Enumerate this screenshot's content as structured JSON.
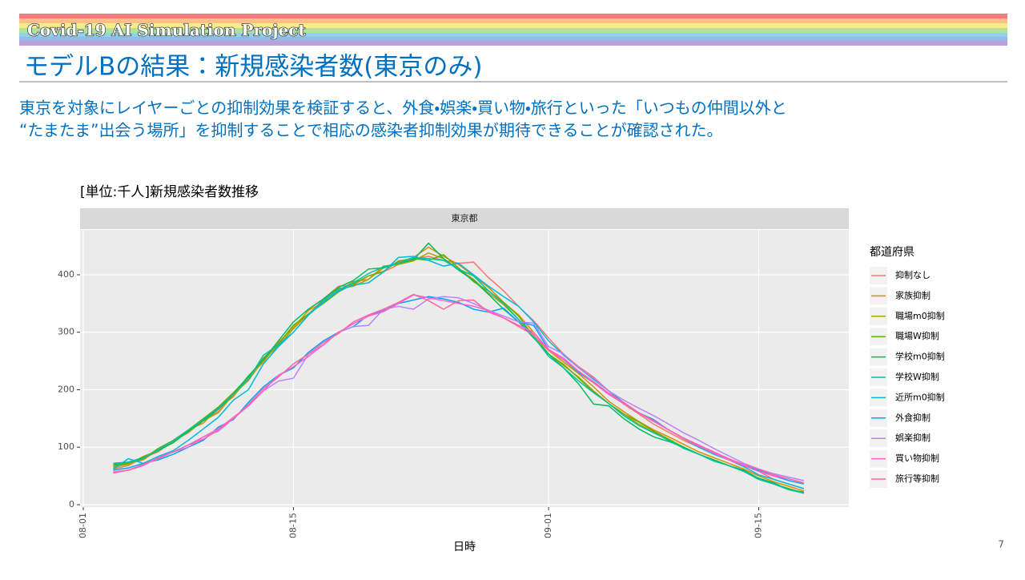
{
  "slide": {
    "project": "Covid-19 AI Simulation Project",
    "heading": "モデルBの結果：新規感染者数(東京のみ)",
    "body": [
      "東京を対象にレイヤーごとの抑制効果を検証すると、外食・娯楽・買い物・旅行といった「いつもの仲間以外と",
      "“たまたま”出会う場所」を抑制することで相応の感染者抑制効果が期待できることが確認された。"
    ],
    "page_number": "7"
  },
  "chart_data": {
    "type": "line",
    "title": "[単位:千人]新規感染者数推移",
    "facet": "東京都",
    "x_label": "日時",
    "legend_title": "都道府県",
    "x": [
      "08-03",
      "08-04",
      "08-05",
      "08-06",
      "08-07",
      "08-08",
      "08-09",
      "08-10",
      "08-11",
      "08-12",
      "08-13",
      "08-14",
      "08-15",
      "08-16",
      "08-17",
      "08-18",
      "08-19",
      "08-20",
      "08-21",
      "08-22",
      "08-23",
      "08-24",
      "08-25",
      "08-26",
      "08-27",
      "08-28",
      "08-29",
      "08-30",
      "08-31",
      "09-01",
      "09-02",
      "09-03",
      "09-04",
      "09-05",
      "09-06",
      "09-07",
      "09-08",
      "09-09",
      "09-10",
      "09-11",
      "09-12",
      "09-13",
      "09-14",
      "09-15",
      "09-16",
      "09-17",
      "09-18"
    ],
    "xlim": [
      "08-01",
      "09-21"
    ],
    "xticks": [
      "08-01",
      "08-15",
      "09-01",
      "09-15"
    ],
    "ylim": [
      0,
      478
    ],
    "yticks": [
      0,
      100,
      200,
      300,
      400
    ],
    "grid": true,
    "series": [
      {
        "name": "抑制なし",
        "color": "#F8766D",
        "values": [
          62,
          68,
          82,
          92,
          112,
          125,
          148,
          162,
          192,
          218,
          255,
          278,
          312,
          330,
          358,
          380,
          382,
          398,
          405,
          418,
          428,
          432,
          425,
          420,
          422,
          395,
          372,
          345,
          320,
          290,
          262,
          240,
          222,
          198,
          175,
          158,
          140,
          126,
          112,
          100,
          88,
          78,
          68,
          58,
          44,
          36,
          28
        ]
      },
      {
        "name": "家族抑制",
        "color": "#DB8E00",
        "values": [
          64,
          72,
          78,
          96,
          108,
          130,
          142,
          168,
          188,
          222,
          248,
          282,
          308,
          338,
          352,
          372,
          388,
          392,
          412,
          422,
          430,
          448,
          432,
          418,
          398,
          378,
          352,
          330,
          300,
          268,
          248,
          228,
          205,
          180,
          162,
          145,
          130,
          118,
          105,
          92,
          82,
          72,
          62,
          50,
          40,
          32,
          24
        ]
      },
      {
        "name": "職場m0抑制",
        "color": "#AEA200",
        "values": [
          66,
          70,
          84,
          94,
          110,
          126,
          146,
          160,
          192,
          216,
          252,
          276,
          306,
          332,
          354,
          376,
          380,
          392,
          415,
          418,
          424,
          438,
          428,
          410,
          392,
          368,
          348,
          322,
          296,
          262,
          242,
          222,
          198,
          176,
          158,
          140,
          126,
          112,
          100,
          88,
          78,
          68,
          58,
          46,
          36,
          28,
          20
        ]
      },
      {
        "name": "職場W抑制",
        "color": "#64B200",
        "values": [
          68,
          72,
          80,
          98,
          112,
          130,
          150,
          170,
          195,
          222,
          255,
          280,
          312,
          332,
          350,
          370,
          384,
          398,
          406,
          424,
          428,
          425,
          435,
          412,
          388,
          372,
          352,
          328,
          292,
          262,
          244,
          220,
          196,
          176,
          158,
          144,
          128,
          114,
          100,
          88,
          78,
          68,
          58,
          44,
          36,
          28,
          20
        ]
      },
      {
        "name": "学校m0抑制",
        "color": "#00BD5C",
        "values": [
          70,
          74,
          82,
          94,
          108,
          128,
          146,
          166,
          192,
          224,
          252,
          285,
          318,
          340,
          358,
          378,
          390,
          410,
          412,
          420,
          426,
          455,
          428,
          408,
          390,
          366,
          340,
          318,
          290,
          262,
          238,
          210,
          175,
          172,
          150,
          132,
          118,
          110,
          100,
          88,
          78,
          68,
          60,
          46,
          38,
          26,
          22
        ]
      },
      {
        "name": "学校W抑制",
        "color": "#00C1A7",
        "values": [
          72,
          74,
          80,
          96,
          112,
          130,
          148,
          168,
          192,
          218,
          260,
          278,
          300,
          330,
          356,
          374,
          386,
          402,
          414,
          420,
          430,
          428,
          425,
          410,
          398,
          372,
          350,
          322,
          292,
          258,
          238,
          215,
          195,
          176,
          155,
          138,
          125,
          112,
          98,
          88,
          76,
          68,
          58,
          44,
          36,
          26,
          20
        ]
      },
      {
        "name": "近所m0抑制",
        "color": "#00BADE",
        "values": [
          62,
          80,
          72,
          84,
          94,
          112,
          132,
          152,
          182,
          200,
          245,
          275,
          300,
          330,
          352,
          372,
          382,
          386,
          405,
          430,
          432,
          425,
          415,
          420,
          400,
          380,
          362,
          345,
          318,
          285,
          260,
          238,
          218,
          198,
          178,
          160,
          145,
          130,
          115,
          100,
          88,
          78,
          66,
          52,
          44,
          36,
          28
        ]
      },
      {
        "name": "外食抑制",
        "color": "#00A5FF",
        "values": [
          60,
          64,
          72,
          78,
          88,
          100,
          112,
          135,
          148,
          178,
          205,
          225,
          238,
          265,
          285,
          300,
          310,
          330,
          338,
          350,
          356,
          362,
          358,
          352,
          340,
          335,
          342,
          318,
          312,
          270,
          252,
          230,
          212,
          192,
          176,
          160,
          148,
          130,
          115,
          104,
          90,
          80,
          68,
          60,
          50,
          42,
          36
        ]
      },
      {
        "name": "娯楽抑制",
        "color": "#B983FF",
        "values": [
          56,
          60,
          70,
          82,
          92,
          100,
          118,
          128,
          150,
          172,
          198,
          215,
          220,
          262,
          278,
          300,
          310,
          312,
          340,
          345,
          340,
          358,
          362,
          360,
          350,
          338,
          328,
          318,
          316,
          275,
          262,
          238,
          220,
          198,
          182,
          168,
          155,
          140,
          125,
          112,
          98,
          85,
          72,
          62,
          54,
          48,
          42
        ]
      },
      {
        "name": "買い物抑制",
        "color": "#FD61D1",
        "values": [
          55,
          60,
          68,
          82,
          92,
          104,
          118,
          132,
          152,
          172,
          198,
          225,
          240,
          258,
          278,
          300,
          315,
          328,
          336,
          350,
          365,
          360,
          355,
          350,
          345,
          338,
          325,
          312,
          300,
          270,
          255,
          232,
          212,
          192,
          176,
          160,
          145,
          130,
          115,
          102,
          90,
          78,
          68,
          58,
          50,
          45,
          38
        ]
      },
      {
        "name": "旅行等抑制",
        "color": "#FF67A4",
        "values": [
          57,
          60,
          70,
          80,
          92,
          104,
          114,
          130,
          150,
          174,
          202,
          222,
          245,
          262,
          282,
          298,
          318,
          330,
          340,
          352,
          366,
          355,
          340,
          355,
          356,
          335,
          325,
          310,
          295,
          268,
          252,
          232,
          214,
          194,
          178,
          160,
          146,
          130,
          116,
          104,
          92,
          80,
          70,
          62,
          52,
          45,
          38
        ]
      }
    ]
  }
}
